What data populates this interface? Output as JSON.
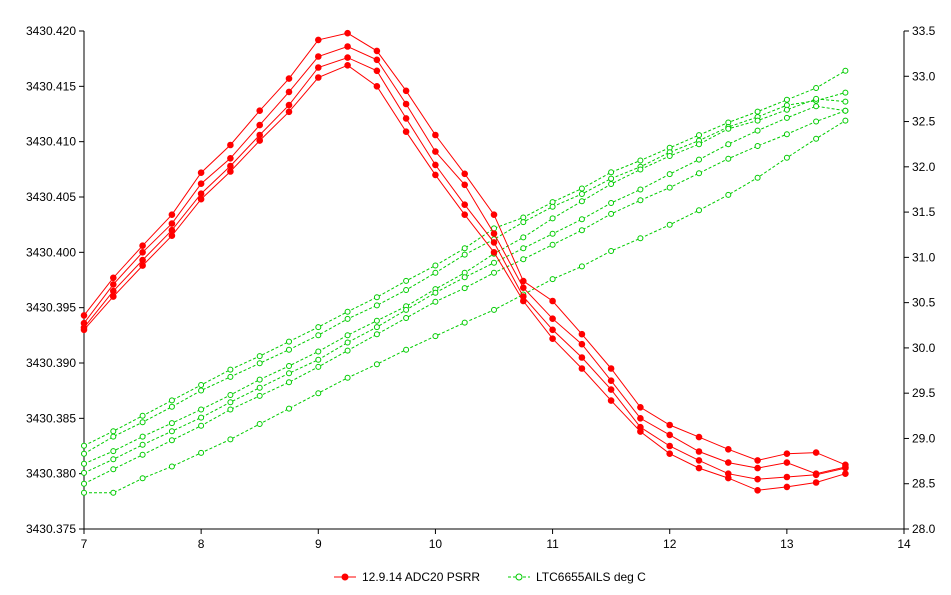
{
  "chart_data": {
    "type": "line",
    "title": "",
    "xlabel": "",
    "ylabel": "",
    "y2label": "",
    "xlim": [
      7,
      14
    ],
    "ylim": [
      3430.375,
      3430.42
    ],
    "y2lim": [
      28.0,
      33.5
    ],
    "x_ticks": [
      "7",
      "8",
      "9",
      "10",
      "11",
      "12",
      "13",
      "14"
    ],
    "y_ticks": [
      "3430.375",
      "3430.380",
      "3430.385",
      "3430.390",
      "3430.395",
      "3430.400",
      "3430.405",
      "3430.410",
      "3430.415",
      "3430.420"
    ],
    "y2_ticks": [
      "28.0",
      "28.5",
      "29.0",
      "29.5",
      "30.0",
      "30.5",
      "31.0",
      "31.5",
      "32.0",
      "32.5",
      "33.0",
      "33.5"
    ],
    "grid": false,
    "legend_position": "bottom",
    "legend": [
      {
        "label": "12.9.14 ADC20 PSRR",
        "color": "#ff0000",
        "style": "solid-filled-dot"
      },
      {
        "label": "LTC6655AILS deg C",
        "color": "#00cc00",
        "style": "dashed-open-circle"
      }
    ],
    "x": [
      7,
      7.25,
      7.5,
      7.75,
      8,
      8.25,
      8.5,
      8.75,
      9,
      9.25,
      9.5,
      9.75,
      10,
      10.25,
      10.5,
      10.75,
      11,
      11.25,
      11.5,
      11.75,
      12,
      12.25,
      12.5,
      12.75,
      13,
      13.25,
      13.5
    ],
    "series": [
      {
        "legend_index": 0,
        "axis": "left",
        "color": "#ff0000",
        "values": [
          3430.3943,
          3430.3977,
          3430.4006,
          3430.4034,
          3430.4072,
          3430.4097,
          3430.4128,
          3430.4157,
          3430.4192,
          3430.4198,
          3430.4182,
          3430.4146,
          3430.4106,
          3430.4071,
          3430.4034,
          3430.3974,
          3430.3956,
          3430.3926,
          3430.3895,
          3430.386,
          3430.3844,
          3430.3833,
          3430.3822,
          3430.3812,
          3430.3818,
          3430.3819,
          3430.3808
        ]
      },
      {
        "legend_index": 0,
        "axis": "left",
        "color": "#ff0000",
        "values": [
          3430.3936,
          3430.3971,
          3430.4,
          3430.4026,
          3430.4062,
          3430.4085,
          3430.4115,
          3430.4145,
          3430.4177,
          3430.4186,
          3430.4174,
          3430.4134,
          3430.4091,
          3430.4061,
          3430.4017,
          3430.3968,
          3430.394,
          3430.3917,
          3430.3884,
          3430.385,
          3430.3835,
          3430.382,
          3430.381,
          3430.3805,
          3430.381,
          3430.38,
          3430.3806
        ]
      },
      {
        "legend_index": 0,
        "axis": "left",
        "color": "#ff0000",
        "values": [
          3430.3932,
          3430.3965,
          3430.3993,
          3430.402,
          3430.4053,
          3430.4078,
          3430.4106,
          3430.4133,
          3430.4167,
          3430.4176,
          3430.4164,
          3430.4121,
          3430.4079,
          3430.4043,
          3430.4009,
          3430.396,
          3430.393,
          3430.3905,
          3430.3876,
          3430.3842,
          3430.3825,
          3430.3812,
          3430.38,
          3430.3795,
          3430.3797,
          3430.3799,
          3430.3805
        ]
      },
      {
        "legend_index": 0,
        "axis": "left",
        "color": "#ff0000",
        "values": [
          3430.393,
          3430.396,
          3430.3988,
          3430.4015,
          3430.4048,
          3430.4073,
          3430.4101,
          3430.4127,
          3430.4158,
          3430.4169,
          3430.415,
          3430.4109,
          3430.407,
          3430.4034,
          3430.4,
          3430.3956,
          3430.3922,
          3430.3895,
          3430.3866,
          3430.3838,
          3430.3818,
          3430.3805,
          3430.3796,
          3430.3785,
          3430.3788,
          3430.3792,
          3430.38
        ]
      },
      {
        "legend_index": 1,
        "axis": "right",
        "color": "#00cc00",
        "values": [
          28.92,
          29.08,
          29.25,
          29.42,
          29.59,
          29.76,
          29.91,
          30.07,
          30.23,
          30.4,
          30.56,
          30.74,
          30.91,
          31.1,
          31.32,
          31.44,
          31.61,
          31.76,
          31.94,
          32.07,
          32.21,
          32.35,
          32.49,
          32.61,
          32.74,
          32.87,
          33.06
        ]
      },
      {
        "legend_index": 1,
        "axis": "right",
        "color": "#00cc00",
        "values": [
          28.83,
          29.02,
          29.18,
          29.35,
          29.53,
          29.68,
          29.83,
          29.98,
          30.14,
          30.32,
          30.47,
          30.64,
          30.83,
          31.03,
          31.2,
          31.39,
          31.56,
          31.7,
          31.87,
          32.0,
          32.16,
          32.29,
          32.44,
          32.55,
          32.68,
          32.73,
          32.82
        ]
      },
      {
        "legend_index": 1,
        "axis": "right",
        "color": "#00cc00",
        "values": [
          28.72,
          28.86,
          29.02,
          29.17,
          29.32,
          29.48,
          29.65,
          29.8,
          29.96,
          30.14,
          30.3,
          30.46,
          30.65,
          30.83,
          31.04,
          31.22,
          31.43,
          31.62,
          31.81,
          31.97,
          32.12,
          32.25,
          32.42,
          32.51,
          32.63,
          32.75,
          32.72
        ]
      },
      {
        "legend_index": 1,
        "axis": "right",
        "color": "#00cc00",
        "values": [
          28.62,
          28.77,
          28.93,
          29.08,
          29.23,
          29.4,
          29.56,
          29.72,
          29.87,
          30.06,
          30.23,
          30.42,
          30.61,
          30.78,
          30.94,
          31.1,
          31.26,
          31.42,
          31.6,
          31.75,
          31.92,
          32.08,
          32.25,
          32.4,
          32.54,
          32.67,
          32.62
        ]
      },
      {
        "legend_index": 1,
        "axis": "right",
        "color": "#00cc00",
        "values": [
          28.5,
          28.66,
          28.82,
          28.98,
          29.14,
          29.32,
          29.47,
          29.62,
          29.79,
          29.97,
          30.15,
          30.33,
          30.51,
          30.66,
          30.83,
          30.98,
          31.14,
          31.3,
          31.48,
          31.63,
          31.77,
          31.93,
          32.09,
          32.23,
          32.36,
          32.5,
          32.62
        ]
      },
      {
        "legend_index": 1,
        "axis": "right",
        "color": "#00cc00",
        "values": [
          28.4,
          28.4,
          28.56,
          28.69,
          28.84,
          28.99,
          29.16,
          29.33,
          29.5,
          29.67,
          29.82,
          29.98,
          30.13,
          30.28,
          30.42,
          30.59,
          30.76,
          30.9,
          31.07,
          31.21,
          31.36,
          31.52,
          31.69,
          31.88,
          32.1,
          32.31,
          32.51
        ]
      }
    ]
  }
}
